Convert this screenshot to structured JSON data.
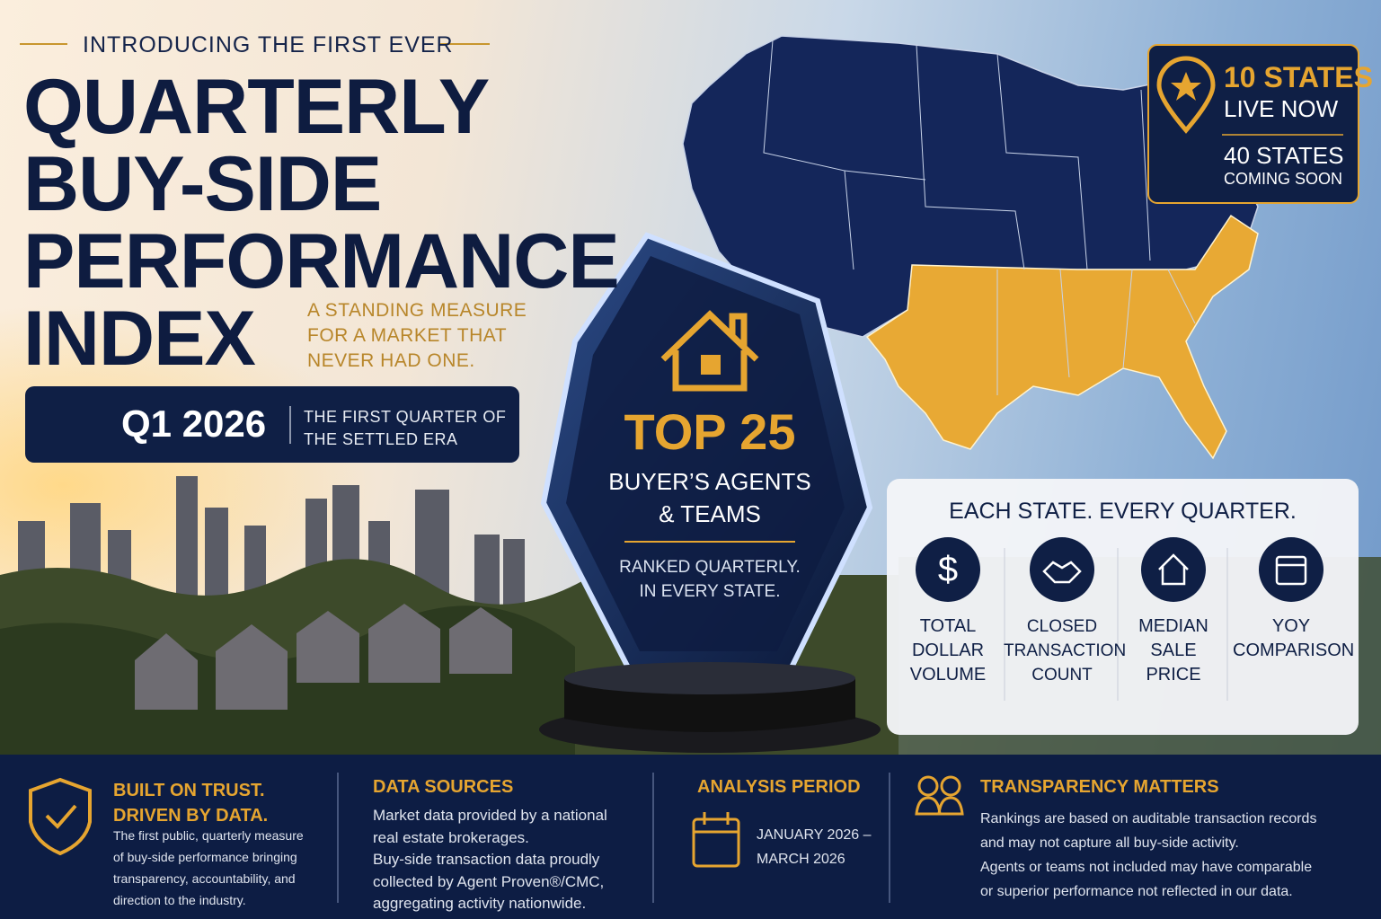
{
  "header": {
    "kicker": "INTRODUCING THE FIRST EVER",
    "title_lines": [
      "QUARTERLY",
      "BUY-SIDE",
      "PERFORMANCE",
      "INDEX"
    ],
    "tagline_lines": [
      "A STANDING MEASURE",
      "FOR A MARKET THAT",
      "NEVER HAD ONE."
    ]
  },
  "period_badge": {
    "quarter": "Q1 2026",
    "note_lines": [
      "THE FIRST QUARTER OF",
      "THE SETTLED ERA"
    ]
  },
  "trophy": {
    "headline": "TOP 25",
    "subtitle_lines": [
      "BUYER’S AGENTS",
      "& TEAMS"
    ],
    "note_lines": [
      "RANKED QUARTERLY.",
      "IN EVERY STATE."
    ]
  },
  "states_badge": {
    "live": "10 STATES",
    "live_note": "LIVE NOW",
    "soon": "40 STATES",
    "soon_note": "COMING SOON"
  },
  "metrics": {
    "title": "EACH STATE. EVERY QUARTER.",
    "symbol": "$",
    "items": [
      {
        "label_lines": [
          "TOTAL",
          "DOLLAR",
          "VOLUME"
        ]
      },
      {
        "label_lines": [
          "CLOSED",
          "TRANSACTION",
          "COUNT"
        ]
      },
      {
        "label_lines": [
          "MEDIAN",
          "SALE",
          "PRICE"
        ]
      },
      {
        "label_lines": [
          "YOY",
          "COMPARISON"
        ]
      }
    ]
  },
  "footer": {
    "sections": [
      {
        "title_lines": [
          "BUILT ON TRUST.",
          "DRIVEN BY DATA."
        ],
        "body_lines": [
          "The first public, quarterly measure",
          "of buy-side performance bringing",
          "transparency, accountability, and",
          "direction to the industry."
        ]
      },
      {
        "title_lines": [
          "DATA SOURCES"
        ],
        "body_lines": [
          "Market data provided by a national",
          "real estate brokerages.",
          "Buy-side transaction data proudly",
          "collected by Agent Proven®/CMC,",
          "aggregating activity nationwide."
        ]
      },
      {
        "title_lines": [
          "ANALYSIS PERIOD"
        ],
        "body_lines": [
          "JANUARY 2026 –",
          "MARCH 2026"
        ]
      },
      {
        "title_lines": [
          "TRANSPARENCY MATTERS"
        ],
        "body_lines": [
          "Rankings are based on auditable transaction records",
          "and may not capture all buy-side activity.",
          "Agents or teams not included may have comparable",
          "or superior performance not reflected in our data."
        ]
      }
    ]
  }
}
